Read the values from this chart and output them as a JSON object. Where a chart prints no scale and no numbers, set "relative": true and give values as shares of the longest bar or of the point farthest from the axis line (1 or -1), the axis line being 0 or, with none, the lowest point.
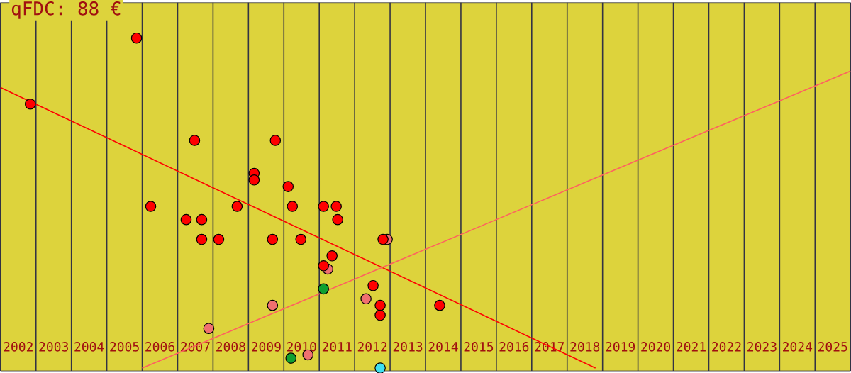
{
  "chart_data": {
    "type": "scatter",
    "title": "qFDC: 88 €",
    "relative": true,
    "grid": "x",
    "xlim": [
      2001.5,
      2025.5
    ],
    "xticks": [
      2002,
      2003,
      2004,
      2005,
      2006,
      2007,
      2008,
      2009,
      2010,
      2011,
      2012,
      2013,
      2014,
      2015,
      2016,
      2017,
      2018,
      2019,
      2020,
      2021,
      2022,
      2023,
      2024,
      2025
    ],
    "series": [
      {
        "type": "line",
        "marker": "none",
        "color": "#ff0000",
        "x": [
          2001.5,
          2018.3
        ],
        "values": [
          0.85,
          0
        ]
      },
      {
        "type": "line",
        "marker": "none",
        "color": "#ff6060",
        "x": [
          2005.5,
          2025.5
        ],
        "values": [
          0,
          0.9
        ]
      },
      {
        "marker": "circle",
        "color": "#f07070",
        "x": [
          2010.74,
          2009.18,
          2007.38,
          2010.18,
          2012.42,
          2011.82
        ],
        "values": [
          0.3,
          0.19,
          0.12,
          0.04,
          0.39,
          0.21
        ]
      },
      {
        "marker": "circle",
        "color": "#ff0000",
        "x": [
          2002.34,
          2005.34,
          2006.98,
          2009.26,
          2005.74,
          2006.74,
          2007.18,
          2007.18,
          2007.66,
          2008.18,
          2008.66,
          2008.66,
          2009.18,
          2009.62,
          2009.74,
          2009.98,
          2010.62,
          2010.98,
          2011.02,
          2010.86,
          2010.62,
          2012.3,
          2012.02,
          2012.22,
          2012.22,
          2013.9
        ],
        "values": [
          0.8,
          1.0,
          0.69,
          0.69,
          0.49,
          0.45,
          0.45,
          0.39,
          0.39,
          0.49,
          0.59,
          0.57,
          0.39,
          0.55,
          0.49,
          0.39,
          0.49,
          0.49,
          0.45,
          0.34,
          0.31,
          0.39,
          0.25,
          0.19,
          0.16,
          0.19
        ]
      },
      {
        "marker": "circle",
        "color": "#10a030",
        "x": [
          2010.62,
          2009.7
        ],
        "values": [
          0.24,
          0.03
        ]
      },
      {
        "marker": "circle",
        "color": "#40e0f0",
        "x": [
          2012.22
        ],
        "values": [
          0.0
        ]
      }
    ]
  }
}
